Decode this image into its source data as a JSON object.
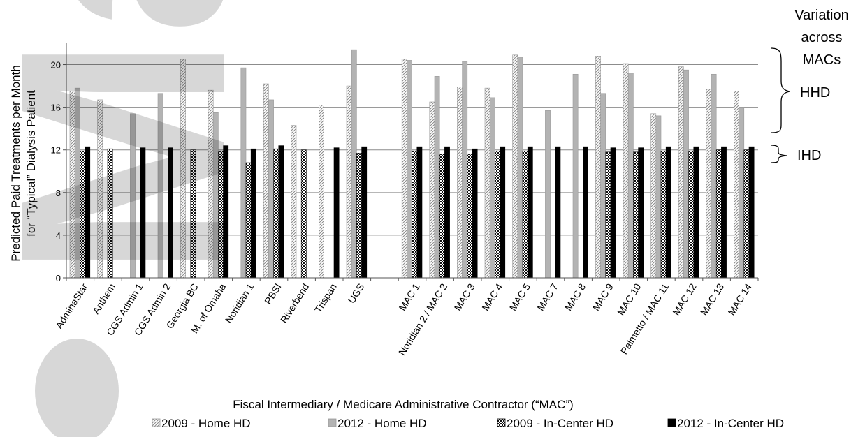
{
  "chart_data": {
    "type": "bar",
    "xlabel": "Fiscal Intermediary  / Medicare Administrative  Contractor (“MAC”)",
    "ylabel_line1": "Predicted Paid Treatments  per Month",
    "ylabel_line2": "for “Typical” Dialysis Patient",
    "ylim": [
      0,
      22
    ],
    "yticks": [
      0,
      4,
      8,
      12,
      16,
      20
    ],
    "grid": true,
    "legend_position": "bottom",
    "categories": [
      "AdminaStar",
      "Anthem",
      "CGS Admin 1",
      "CGS Admin 2",
      "Georgia BC",
      "M. of Omaha",
      "Noridian 1",
      "PBSI",
      "Riverbend",
      "Trispan",
      "UGS",
      "",
      "MAC 1",
      "Noridian 2 / MAC 2",
      "MAC 3",
      "MAC 4",
      "MAC 5",
      "MAC 7",
      "MAC 8",
      "MAC 9",
      "MAC 10",
      "Palmetto / MAC 11",
      "MAC 12",
      "MAC 13",
      "MAC 14"
    ],
    "series": [
      {
        "name": "2009 - Home HD",
        "pattern": "diagonal-hatch",
        "color": "#c8c8c8",
        "values": [
          17.5,
          16.7,
          null,
          null,
          20.5,
          17.6,
          null,
          18.2,
          14.3,
          16.2,
          18.0,
          null,
          20.5,
          16.5,
          17.9,
          17.8,
          20.9,
          null,
          null,
          20.8,
          20.1,
          15.4,
          19.8,
          17.7,
          17.5
        ]
      },
      {
        "name": "2012 - Home HD",
        "pattern": "solid",
        "color": "#b3b3b3",
        "values": [
          17.8,
          null,
          15.4,
          17.3,
          null,
          15.5,
          19.7,
          16.7,
          null,
          null,
          21.4,
          null,
          20.4,
          18.9,
          20.3,
          16.9,
          20.7,
          15.7,
          19.1,
          17.3,
          19.2,
          15.2,
          19.5,
          19.1,
          16.0
        ]
      },
      {
        "name": "2009 - In-Center HD",
        "pattern": "checker",
        "color": "#222222",
        "values": [
          11.9,
          12.1,
          null,
          null,
          12.0,
          11.9,
          10.8,
          12.1,
          12.0,
          null,
          11.7,
          null,
          11.9,
          11.6,
          11.6,
          11.9,
          11.9,
          null,
          null,
          11.8,
          11.8,
          11.9,
          11.9,
          12.0,
          12.0
        ]
      },
      {
        "name": "2012 - In-Center HD",
        "pattern": "solid",
        "color": "#000000",
        "values": [
          12.3,
          null,
          12.2,
          12.2,
          null,
          12.4,
          12.1,
          12.4,
          null,
          12.2,
          12.3,
          null,
          12.3,
          12.3,
          12.1,
          12.3,
          12.3,
          12.3,
          12.3,
          12.2,
          12.2,
          12.3,
          12.3,
          12.3,
          12.3
        ]
      }
    ],
    "annotations": {
      "variation": [
        "Variation",
        "across",
        "MACs"
      ],
      "hhd": "HHD",
      "ihd": "IHD"
    }
  }
}
